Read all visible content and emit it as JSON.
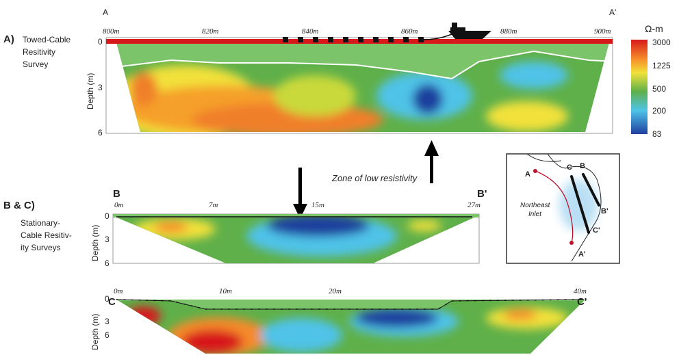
{
  "panel_a": {
    "letter": "A)",
    "title_lines": [
      "Towed-Cable",
      "Resitivity",
      "Survey"
    ],
    "start": "A",
    "end": "A'",
    "x_ticks": [
      "800m",
      "820m",
      "840m",
      "860m",
      "880m",
      "900m"
    ],
    "depth_ticks": [
      "0",
      "3",
      "6"
    ],
    "depth_label": "Depth (m)"
  },
  "panel_bc": {
    "letter": "B & C)",
    "title_lines": [
      "Stationary-",
      "Cable Resitiv-",
      "ity Surveys"
    ]
  },
  "panel_b": {
    "start": "B",
    "end": "B'",
    "x_ticks": [
      "0m",
      "7m",
      "15m",
      "27m"
    ],
    "depth_ticks": [
      "0",
      "3",
      "6"
    ],
    "depth_label": "Depth (m)"
  },
  "panel_c": {
    "start": "C",
    "end": "C'",
    "x_ticks": [
      "0m",
      "10m",
      "20m",
      "40m"
    ],
    "depth_ticks": [
      "0",
      "3",
      "6"
    ],
    "depth_label": "Depth (m)"
  },
  "colorbar": {
    "unit": "Ω-m",
    "labels": [
      "3000",
      "1225",
      "500",
      "200",
      "83"
    ]
  },
  "annotation": "Zone of low resistivity",
  "inset": {
    "labels": [
      "A",
      "C",
      "B",
      "B'",
      "C'",
      "A'"
    ],
    "place_lines": [
      "Northeast",
      "Inlet"
    ]
  }
}
